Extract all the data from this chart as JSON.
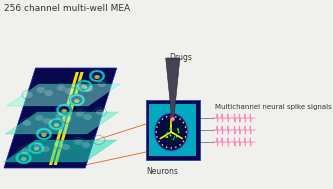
{
  "bg_color": "#f0f0ec",
  "title_text": "256 channel multi-well MEA",
  "title_color": "#333333",
  "title_fontsize": 6.5,
  "label_drugs": "Drugs",
  "label_neurons": "Neurons",
  "label_signals": "Multichannel neural spike signals",
  "label_color": "#333333",
  "label_fontsize": 5.5,
  "board_dark": "#080850",
  "board_mid": "#0d0d70",
  "well_teal": "#00c8c0",
  "well_dark": "#0d0d70",
  "lid_green1": "#88ffdd",
  "lid_green2": "#55eecc",
  "lid_green3": "#22ddbb",
  "electrode_yellow": "#ffee00",
  "chip_teal": "#00a8c0",
  "chip_dark": "#080850",
  "pipette_dark": "#444455",
  "drug_pink": "#ff88bb",
  "spike_pink": "#ff88bb",
  "wire_gray": "#888888",
  "conn_orange": "#dd6622",
  "white": "#ffffff"
}
